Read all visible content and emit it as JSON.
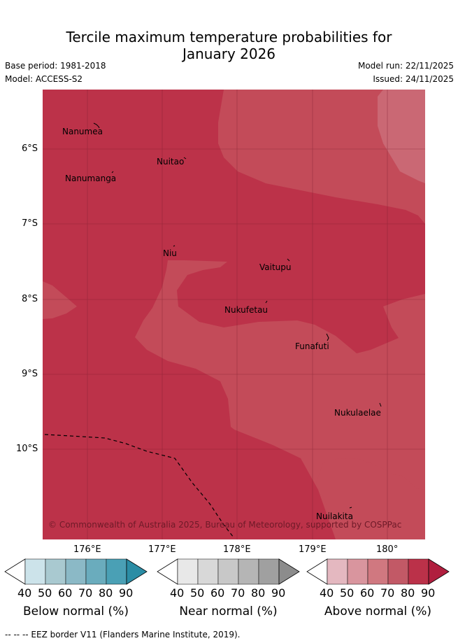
{
  "title_line1": "Tercile maximum temperature probabilities for",
  "title_line2": "January 2026",
  "base_period": "Base period: 1981-2018",
  "model": "Model: ACCESS-S2",
  "model_run": "Model run: 22/11/2025",
  "issued": "Issued: 24/11/2025",
  "axes": {
    "lon_ticks": [
      "176°E",
      "177°E",
      "178°E",
      "179°E",
      "180°"
    ],
    "lat_ticks": [
      "6°S",
      "7°S",
      "8°S",
      "9°S",
      "10°S"
    ]
  },
  "places": [
    {
      "name": "Nanumea"
    },
    {
      "name": "Nuitao"
    },
    {
      "name": "Nanumanga"
    },
    {
      "name": "Niu"
    },
    {
      "name": "Vaitupu"
    },
    {
      "name": "Nukufetau"
    },
    {
      "name": "Funafuti"
    },
    {
      "name": "Nukulaelae"
    },
    {
      "name": "Nuilakita"
    }
  ],
  "copyright": "© Commonwealth of Australia 2025, Bureau of Meteorology, supported by COSPPac",
  "legends": [
    {
      "title": "Below normal (%)",
      "ticks": [
        "40",
        "50",
        "60",
        "70",
        "80",
        "90"
      ],
      "colors": [
        "#ffffff",
        "#cce3ea",
        "#a9c9d0",
        "#8bb9c6",
        "#6aacbd",
        "#4aa0b5",
        "#2b8da5"
      ]
    },
    {
      "title": "Near normal (%)",
      "ticks": [
        "40",
        "50",
        "60",
        "70",
        "80",
        "90"
      ],
      "colors": [
        "#ffffff",
        "#e8e8e8",
        "#d8d8d8",
        "#c8c8c8",
        "#b5b5b5",
        "#a0a0a0",
        "#8c8c8c"
      ]
    },
    {
      "title": "Above normal (%)",
      "ticks": [
        "40",
        "50",
        "60",
        "70",
        "80",
        "90"
      ],
      "colors": [
        "#ffffff",
        "#e4b8c0",
        "#d9959e",
        "#d07880",
        "#c25966",
        "#bb3149",
        "#b01e3e"
      ]
    }
  ],
  "colors": {
    "zone80": "#bc3249",
    "zone70": "#c34b59",
    "zone60": "#ca6874"
  },
  "footer": "--  --  -- EEZ border V11 (Flanders Marine Institute, 2019)."
}
